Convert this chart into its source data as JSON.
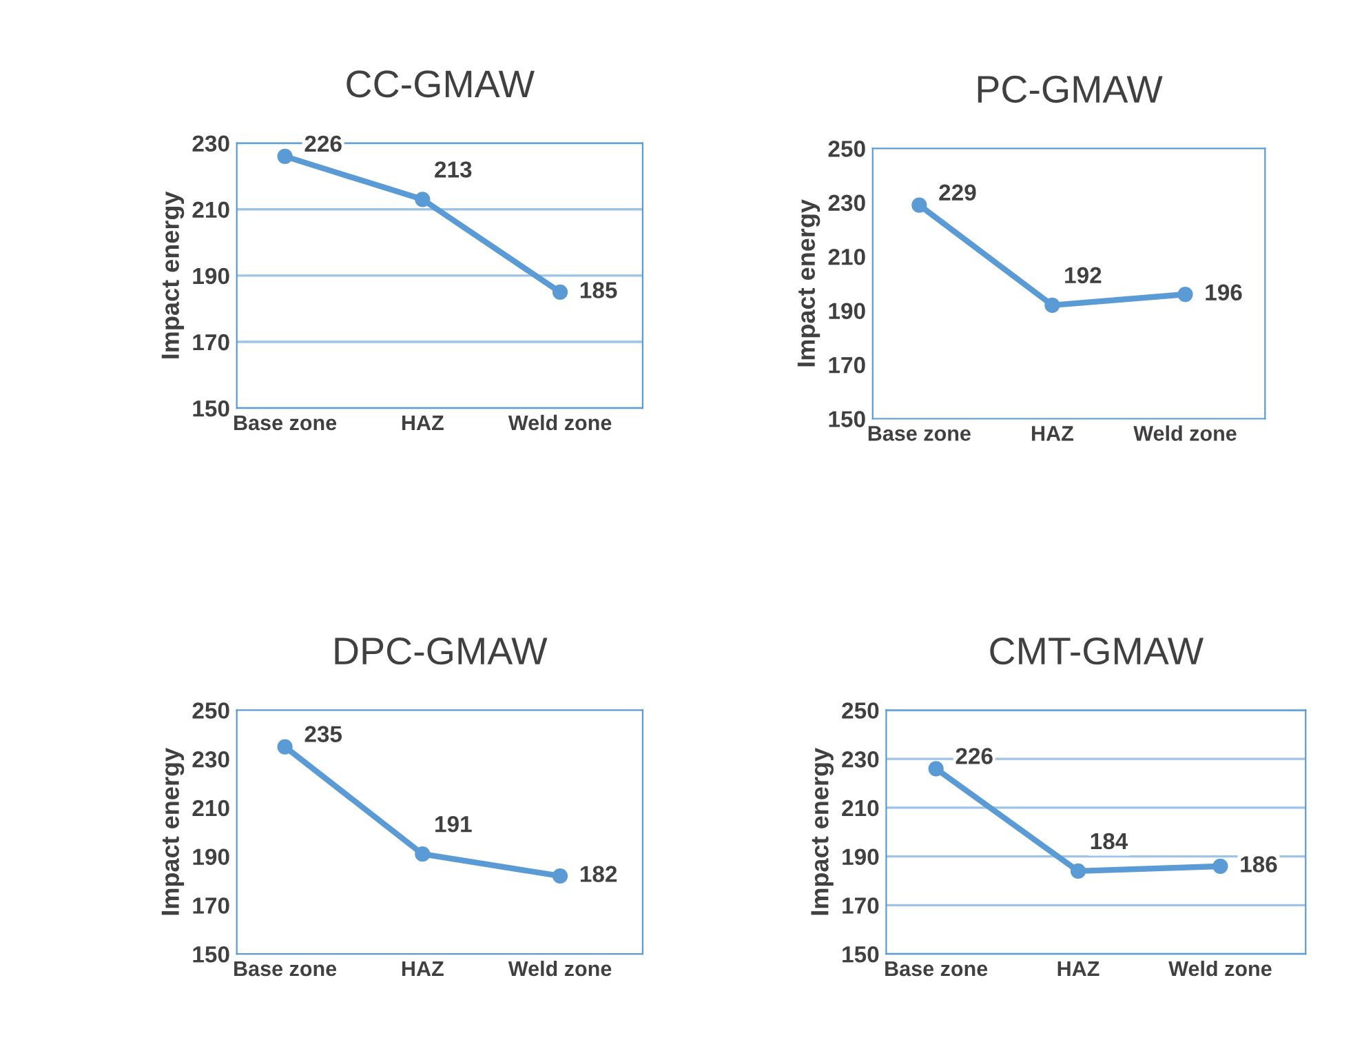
{
  "chart_data": [
    {
      "type": "line",
      "title": "CC-GMAW",
      "ylabel": "Impact energy",
      "categories": [
        "Base zone",
        "HAZ",
        "Weld zone"
      ],
      "series": [
        {
          "color": "#5b9bd5",
          "values": [
            226,
            213,
            185
          ]
        }
      ],
      "ylim": [
        150,
        230
      ],
      "yticks": [
        150,
        170,
        190,
        210,
        230
      ],
      "grid": "y",
      "marker": "circle",
      "line_style": "solid",
      "data_labels": true
    },
    {
      "type": "line",
      "title": "PC-GMAW",
      "ylabel": "Impact energy",
      "categories": [
        "Base zone",
        "HAZ",
        "Weld zone"
      ],
      "series": [
        {
          "color": "#5b9bd5",
          "values": [
            229,
            192,
            196
          ]
        }
      ],
      "ylim": [
        150,
        250
      ],
      "yticks": [
        150,
        170,
        190,
        210,
        230,
        250
      ],
      "marker": "circle",
      "line_style": "solid",
      "data_labels": true
    },
    {
      "type": "line",
      "title": "DPC-GMAW",
      "ylabel": "Impact energy",
      "categories": [
        "Base zone",
        "HAZ",
        "Weld zone"
      ],
      "series": [
        {
          "color": "#5b9bd5",
          "values": [
            235,
            191,
            182
          ]
        }
      ],
      "ylim": [
        150,
        250
      ],
      "yticks": [
        150,
        170,
        190,
        210,
        230,
        250
      ],
      "marker": "circle",
      "line_style": "solid",
      "data_labels": true
    },
    {
      "type": "line",
      "title": "CMT-GMAW",
      "ylabel": "Impact energy",
      "categories": [
        "Base zone",
        "HAZ",
        "Weld zone"
      ],
      "series": [
        {
          "color": "#5b9bd5",
          "values": [
            226,
            184,
            186
          ]
        }
      ],
      "ylim": [
        150,
        250
      ],
      "yticks": [
        150,
        170,
        190,
        210,
        230,
        250
      ],
      "grid": "y",
      "marker": "circle",
      "line_style": "solid",
      "data_labels": true
    }
  ]
}
